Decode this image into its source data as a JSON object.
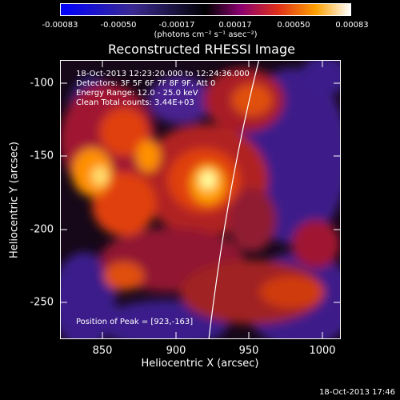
{
  "colorbar": {
    "ticks": [
      "-0.00083",
      "-0.00050",
      "-0.00017",
      "0.00017",
      "0.00050",
      "0.00083"
    ],
    "units": "(photons cm⁻² s⁻¹ asec⁻²)"
  },
  "title": "Reconstructed RHESSI Image",
  "annotations": {
    "time_range": "18-Oct-2013 12:23:20.000 to 12:24:36.000",
    "detectors": "Detectors: 3F 5F 6F 7F 8F 9F, Att 0",
    "energy": "Energy Range: 12.0 - 25.0 keV",
    "clean": "Clean     Total counts: 3.44E+03",
    "peak": "Position of Peak = [923,-163]"
  },
  "axes": {
    "xlabel": "Heliocentric X (arcsec)",
    "ylabel": "Heliocentric Y (arcsec)",
    "xticks": [
      "850",
      "900",
      "950",
      "1000"
    ],
    "yticks": [
      "-100",
      "-150",
      "-200",
      "-250"
    ],
    "xrange": [
      822,
      1012
    ],
    "yrange": [
      -275,
      -80
    ]
  },
  "timestamp": "18-Oct-2013 17:46",
  "colors": {
    "negative": "#0000ff",
    "zero": "#000000",
    "positive_high": "#ffffff"
  }
}
